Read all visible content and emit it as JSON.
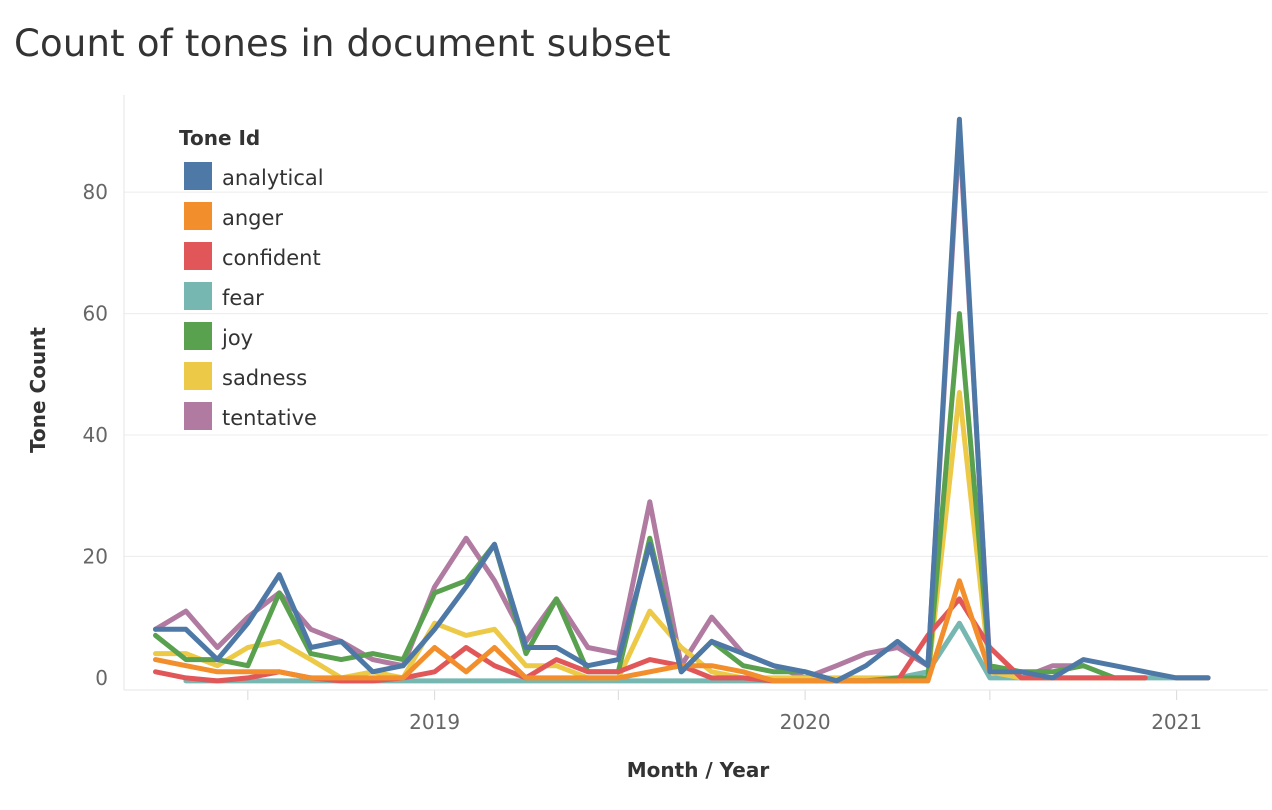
{
  "title": "Count of tones in document subset",
  "chart_data": {
    "type": "line",
    "title": "Count of tones in document subset",
    "xlabel": "Month / Year",
    "ylabel": "Tone Count",
    "xlim": [
      "2018-03-01",
      "2021-04-01"
    ],
    "ylim": [
      -2,
      96
    ],
    "yticks": [
      0,
      20,
      40,
      60,
      80
    ],
    "xticks": [
      {
        "date": "2019-01-01",
        "label": "2019"
      },
      {
        "date": "2020-01-01",
        "label": "2020"
      },
      {
        "date": "2021-01-01",
        "label": "2021"
      }
    ],
    "x": [
      "2018-04",
      "2018-05",
      "2018-06",
      "2018-07",
      "2018-08",
      "2018-09",
      "2018-10",
      "2018-11",
      "2018-12",
      "2019-01",
      "2019-02",
      "2019-03",
      "2019-04",
      "2019-05",
      "2019-06",
      "2019-07",
      "2019-08",
      "2019-09",
      "2019-10",
      "2019-11",
      "2019-12",
      "2020-01",
      "2020-02",
      "2020-03",
      "2020-04",
      "2020-05",
      "2020-06",
      "2020-07",
      "2020-08",
      "2020-09",
      "2020-10",
      "2020-11",
      "2020-12",
      "2021-01",
      "2021-02"
    ],
    "grid": true,
    "legend": {
      "title": "Tone Id",
      "position": "top-left"
    },
    "series": [
      {
        "name": "tentative",
        "color": "#b07aa1",
        "values": [
          8,
          11,
          5,
          10,
          14,
          8,
          6,
          3,
          2,
          15,
          23,
          16,
          6,
          13,
          5,
          4,
          29,
          2,
          10,
          4,
          2,
          0,
          2,
          4,
          5,
          2,
          90,
          2,
          0,
          2,
          2,
          null,
          null,
          0,
          0
        ]
      },
      {
        "name": "fear",
        "color": "#76b7b2",
        "values": [
          null,
          -0.5,
          -0.5,
          -0.5,
          -0.5,
          -0.5,
          -0.5,
          -0.5,
          -0.5,
          -0.5,
          -0.5,
          -0.5,
          -0.5,
          -0.5,
          -0.5,
          -0.5,
          -0.5,
          -0.5,
          -0.5,
          -0.5,
          -0.5,
          -0.5,
          -0.5,
          -0.5,
          0,
          1,
          9,
          0,
          0,
          0,
          0,
          0,
          0,
          0,
          0
        ]
      },
      {
        "name": "sadness",
        "color": "#edc948",
        "values": [
          4,
          4,
          2,
          5,
          6,
          3,
          0,
          1,
          0,
          9,
          7,
          8,
          2,
          2,
          0,
          0,
          11,
          5,
          1,
          0,
          0,
          0,
          0,
          0,
          0,
          0,
          47,
          1,
          0,
          0,
          0,
          0,
          0,
          null,
          null
        ]
      },
      {
        "name": "joy",
        "color": "#59a14f",
        "values": [
          7,
          3,
          3,
          2,
          14,
          4,
          3,
          4,
          3,
          14,
          16,
          22,
          4,
          13,
          1,
          1,
          23,
          1,
          6,
          2,
          1,
          1,
          -0.5,
          -0.5,
          0,
          0,
          60,
          2,
          1,
          1,
          2,
          0,
          0,
          null,
          null
        ]
      },
      {
        "name": "confident",
        "color": "#e15759",
        "values": [
          1,
          0,
          -0.5,
          0,
          1,
          0,
          -0.5,
          -0.5,
          0,
          1,
          5,
          2,
          0,
          3,
          1,
          1,
          3,
          2,
          0,
          0,
          -0.5,
          -0.5,
          -0.5,
          -0.5,
          -0.5,
          7,
          13,
          5,
          0,
          0,
          0,
          0,
          0,
          null,
          null
        ]
      },
      {
        "name": "anger",
        "color": "#f28e2b",
        "values": [
          3,
          2,
          1,
          1,
          1,
          0,
          0,
          0,
          0,
          5,
          1,
          5,
          0,
          0,
          0,
          0,
          1,
          2,
          2,
          1,
          -0.5,
          -0.5,
          -0.5,
          -0.5,
          -0.5,
          -0.5,
          16,
          1,
          1,
          null,
          null,
          null,
          null,
          0,
          0
        ]
      },
      {
        "name": "analytical",
        "color": "#4e79a7",
        "values": [
          8,
          8,
          3,
          9,
          17,
          5,
          6,
          1,
          2,
          8,
          15,
          22,
          5,
          5,
          2,
          3,
          22,
          1,
          6,
          4,
          2,
          1,
          -0.5,
          2,
          6,
          2,
          92,
          1,
          1,
          0,
          3,
          2,
          1,
          0,
          0
        ]
      }
    ]
  },
  "legend_items": [
    {
      "label": "analytical",
      "color": "#4e79a7"
    },
    {
      "label": "anger",
      "color": "#f28e2b"
    },
    {
      "label": "confident",
      "color": "#e15759"
    },
    {
      "label": "fear",
      "color": "#76b7b2"
    },
    {
      "label": "joy",
      "color": "#59a14f"
    },
    {
      "label": "sadness",
      "color": "#edc948"
    },
    {
      "label": "tentative",
      "color": "#b07aa1"
    }
  ]
}
